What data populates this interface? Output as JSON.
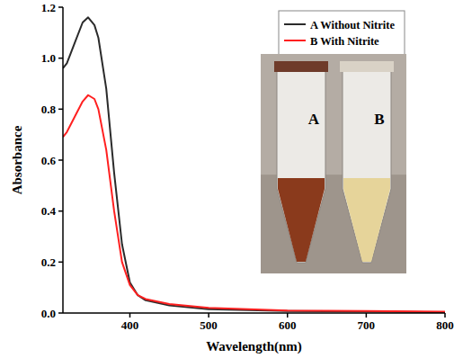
{
  "chart_data": {
    "type": "line",
    "x_label": "Wavelength(nm)",
    "y_label": "Absorbance",
    "x": [
      315,
      320,
      330,
      340,
      347,
      355,
      360,
      370,
      380,
      390,
      400,
      410,
      420,
      450,
      500,
      600,
      700,
      800
    ],
    "series": [
      {
        "name": "A Without Nitrite",
        "color": "#2b2b2b",
        "values": [
          0.96,
          0.98,
          1.06,
          1.14,
          1.16,
          1.13,
          1.08,
          0.88,
          0.55,
          0.27,
          0.12,
          0.07,
          0.05,
          0.03,
          0.015,
          0.008,
          0.006,
          0.003
        ]
      },
      {
        "name": "B With Nitrite",
        "color": "#ff2020",
        "values": [
          0.69,
          0.71,
          0.77,
          0.83,
          0.855,
          0.84,
          0.8,
          0.64,
          0.4,
          0.2,
          0.11,
          0.07,
          0.055,
          0.035,
          0.02,
          0.01,
          0.008,
          0.005
        ]
      }
    ],
    "xlim": [
      315,
      800
    ],
    "xticks": [
      400,
      500,
      600,
      700,
      800
    ],
    "ylim": [
      0,
      1.2
    ],
    "yticks": [
      {
        "value": 0,
        "label": "0.0"
      },
      {
        "value": 0.2,
        "label": "0.2"
      },
      {
        "value": 0.4,
        "label": "0.4"
      },
      {
        "value": 0.6,
        "label": "0.6"
      },
      {
        "value": 0.8,
        "label": "0.8"
      },
      {
        "value": 1.0,
        "label": "1.0"
      },
      {
        "value": 1.2,
        "label": "1.2"
      }
    ],
    "legend": "upper right",
    "grid": false,
    "annotations": [
      "A",
      "B"
    ]
  }
}
